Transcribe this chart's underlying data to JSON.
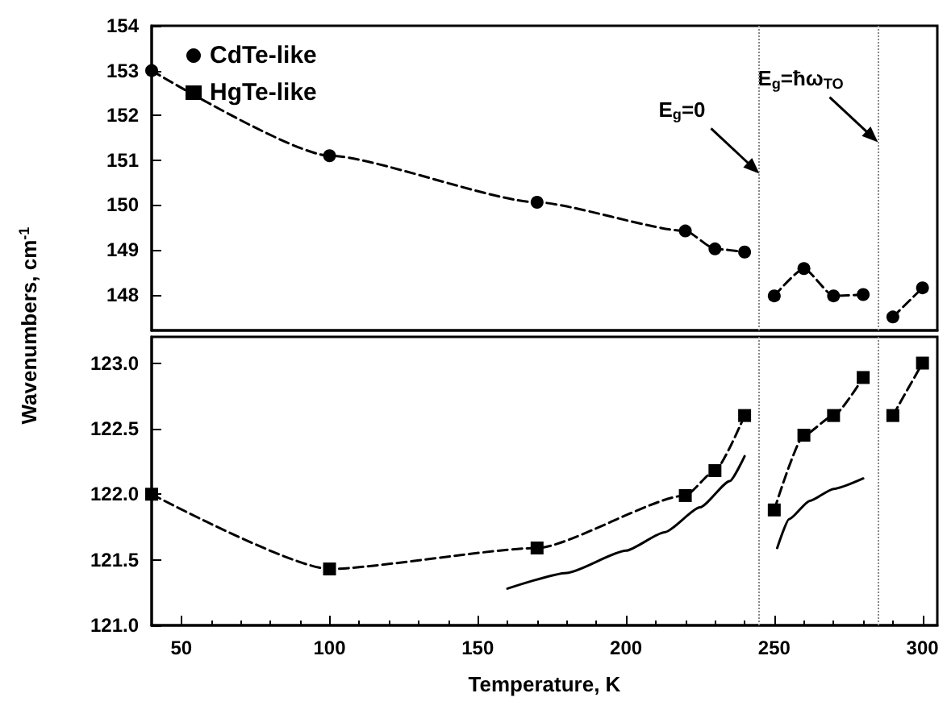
{
  "chart_data": [
    {
      "type": "line",
      "ylabel": "Wavenumbers, cm$^{-1}$",
      "xlim": [
        40,
        305
      ],
      "ylim": [
        147.2,
        154
      ],
      "yticks": [
        148,
        149,
        150,
        151,
        152,
        153,
        154
      ],
      "tick_labels": "y",
      "legend": "top left",
      "line_style": "dashed",
      "x": [
        40,
        100,
        170,
        220,
        230,
        240,
        245,
        250,
        260,
        270,
        280,
        285,
        290,
        300
      ],
      "series": [
        {
          "name": "CdTe-like",
          "color": "#000000",
          "marker": "circle",
          "values": [
            153.0,
            151.1,
            150.06,
            149.42,
            149.02,
            148.95,
            null,
            147.97,
            148.58,
            147.97,
            148.0,
            null,
            147.5,
            148.15
          ]
        }
      ],
      "ref_lines": [
        {
          "axis": "x",
          "value": 245,
          "color": "#888888",
          "line_style": "dotted"
        },
        {
          "axis": "x",
          "value": 285,
          "color": "#888888",
          "line_style": "dotted"
        }
      ],
      "annotations": [
        {
          "text": "E$_{g}$=0",
          "x": 245,
          "y": 150.7
        },
        {
          "text": "E$_{g}$=ħω$_{TO}$",
          "x": 285,
          "y": 151.4
        }
      ]
    },
    {
      "type": "line",
      "xlabel": "Temperature, K",
      "xlim": [
        40,
        305
      ],
      "xticks": [
        50,
        100,
        150,
        200,
        250,
        300
      ],
      "ylim": [
        121,
        123.2
      ],
      "yticks": [
        {
          "value": 121,
          "label": "121.0"
        },
        {
          "value": 121.5,
          "label": "121.5"
        },
        {
          "value": 122,
          "label": "122.0"
        },
        {
          "value": 122.5,
          "label": "122.5"
        },
        {
          "value": 123,
          "label": "123.0"
        }
      ],
      "x": [
        40,
        100,
        170,
        220,
        230,
        240,
        245,
        250,
        260,
        270,
        280,
        285,
        290,
        300
      ],
      "series": [
        {
          "name": "HgTe-like",
          "color": "#000000",
          "marker": "square",
          "line_style": "dashed",
          "values": [
            122.0,
            121.43,
            121.59,
            121.99,
            122.18,
            122.6,
            null,
            121.88,
            122.45,
            122.6,
            122.89,
            null,
            122.6,
            123.0
          ]
        },
        {
          "color": "#000000",
          "marker": "none",
          "line_style": "solid",
          "x": [
            160,
            180,
            200,
            213,
            225,
            235,
            240,
            245,
            251,
            255,
            262,
            270,
            280
          ],
          "values": [
            121.28,
            121.4,
            121.57,
            121.71,
            121.9,
            122.1,
            122.29,
            null,
            121.59,
            121.81,
            121.95,
            122.04,
            122.12
          ]
        }
      ],
      "ref_lines": [
        {
          "axis": "x",
          "value": 245,
          "color": "#888888",
          "line_style": "dotted"
        },
        {
          "axis": "x",
          "value": 285,
          "color": "#888888",
          "line_style": "dotted"
        }
      ]
    }
  ]
}
